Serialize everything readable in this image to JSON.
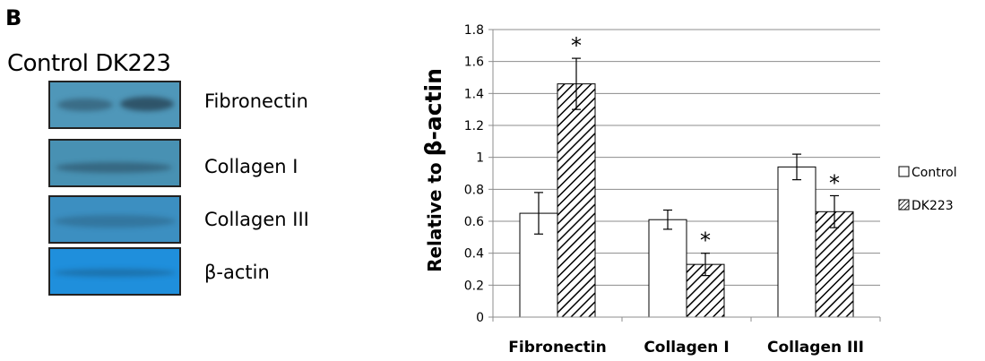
{
  "panel_label": "B",
  "blot": {
    "header": "Control DK223",
    "bands": [
      {
        "label": "Fibronectin",
        "bg": "#4f97b9"
      },
      {
        "label": "Collagen I",
        "bg": "#4891b3"
      },
      {
        "label": "Collagen III",
        "bg": "#3c8fc1"
      },
      {
        "label": "β-actin",
        "bg": "#1f8fdc"
      }
    ]
  },
  "chart_data": {
    "type": "bar",
    "categories": [
      "Fibronectin",
      "Collagen I",
      "Collagen III"
    ],
    "series": [
      {
        "name": "Control",
        "values": [
          0.65,
          0.61,
          0.94
        ],
        "errors": [
          0.13,
          0.06,
          0.08
        ],
        "fill": "white"
      },
      {
        "name": "DK223",
        "values": [
          1.46,
          0.33,
          0.66
        ],
        "errors": [
          0.16,
          0.07,
          0.1
        ],
        "fill": "hatch"
      }
    ],
    "significance": [
      "*",
      "*",
      "*"
    ],
    "ylabel_prefix": "Relative to ",
    "ylabel_emph": "β-actin",
    "ylim": [
      0,
      1.8
    ],
    "yticks": [
      0,
      0.2,
      0.4,
      0.6,
      0.8,
      1,
      1.2,
      1.4,
      1.6,
      1.8
    ],
    "ytick_labels": [
      "0",
      "0.2",
      "0.4",
      "0.6",
      "0.8",
      "1",
      "1.2",
      "1.4",
      "1.6",
      "1.8"
    ],
    "grid": true,
    "legend_position": "right"
  }
}
